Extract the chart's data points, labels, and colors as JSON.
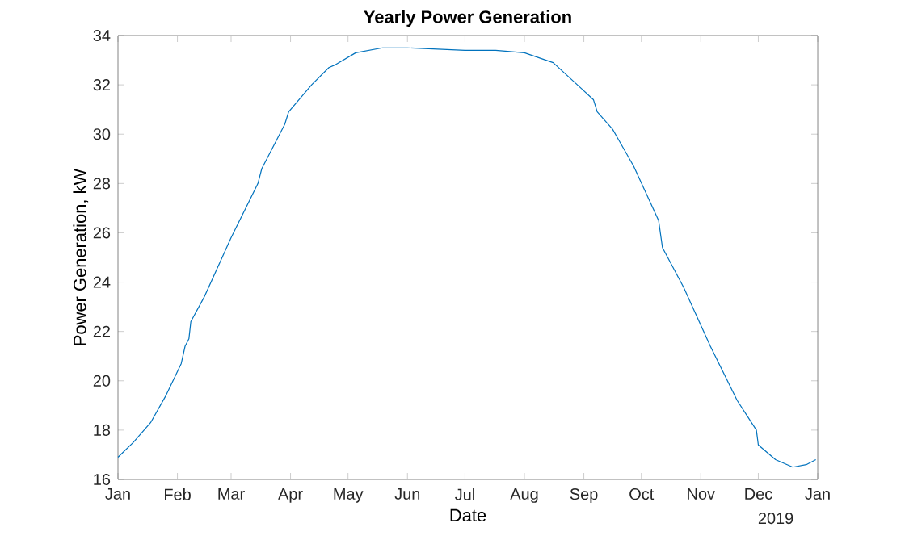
{
  "chart_data": {
    "type": "line",
    "title": "Yearly Power Generation",
    "xlabel": "Date",
    "ylabel": "Power Generation, kW",
    "annotations": [
      "2019"
    ],
    "x": [
      "2018-01-01",
      "2018-01-09",
      "2018-01-18",
      "2018-01-26",
      "2018-02-03",
      "2018-02-05",
      "2018-02-07",
      "2018-02-08",
      "2018-02-15",
      "2018-03-01",
      "2018-03-15",
      "2018-03-17",
      "2018-03-29",
      "2018-03-31",
      "2018-04-12",
      "2018-04-21",
      "2018-04-24",
      "2018-05-05",
      "2018-05-19",
      "2018-06-01",
      "2018-07-01",
      "2018-07-17",
      "2018-08-01",
      "2018-08-16",
      "2018-08-30",
      "2018-09-06",
      "2018-09-08",
      "2018-09-16",
      "2018-09-27",
      "2018-10-10",
      "2018-10-12",
      "2018-10-23",
      "2018-11-06",
      "2018-11-20",
      "2018-11-30",
      "2018-12-01",
      "2018-12-10",
      "2018-12-19",
      "2018-12-26",
      "2018-12-31"
    ],
    "series": [
      {
        "color": "#0072bd",
        "values": [
          16.9,
          17.5,
          18.3,
          19.4,
          20.7,
          21.4,
          21.7,
          22.4,
          23.4,
          25.8,
          28.0,
          28.6,
          30.4,
          30.9,
          32.0,
          32.7,
          32.8,
          33.3,
          33.5,
          33.5,
          33.4,
          33.4,
          33.3,
          32.9,
          31.9,
          31.4,
          30.9,
          30.2,
          28.7,
          26.5,
          25.4,
          23.8,
          21.4,
          19.2,
          18.0,
          17.4,
          16.8,
          16.5,
          16.6,
          16.8
        ]
      }
    ],
    "xlim": [
      "2018-01-01",
      "2019-01-01"
    ],
    "xticks": [
      {
        "value": "2018-01-01",
        "label": "Jan"
      },
      {
        "value": "2018-02-01",
        "label": "Feb"
      },
      {
        "value": "2018-03-01",
        "label": "Mar"
      },
      {
        "value": "2018-04-01",
        "label": "Apr"
      },
      {
        "value": "2018-05-01",
        "label": "May"
      },
      {
        "value": "2018-06-01",
        "label": "Jun"
      },
      {
        "value": "2018-07-01",
        "label": "Jul"
      },
      {
        "value": "2018-08-01",
        "label": "Aug"
      },
      {
        "value": "2018-09-01",
        "label": "Sep"
      },
      {
        "value": "2018-10-01",
        "label": "Oct"
      },
      {
        "value": "2018-11-01",
        "label": "Nov"
      },
      {
        "value": "2018-12-01",
        "label": "Dec"
      },
      {
        "value": "2019-01-01",
        "label": "Jan"
      }
    ],
    "ylim": [
      16,
      34
    ],
    "yticks": [
      16,
      18,
      20,
      22,
      24,
      26,
      28,
      30,
      32,
      34
    ],
    "grid": false,
    "marker": "none",
    "line_style": "solid"
  }
}
